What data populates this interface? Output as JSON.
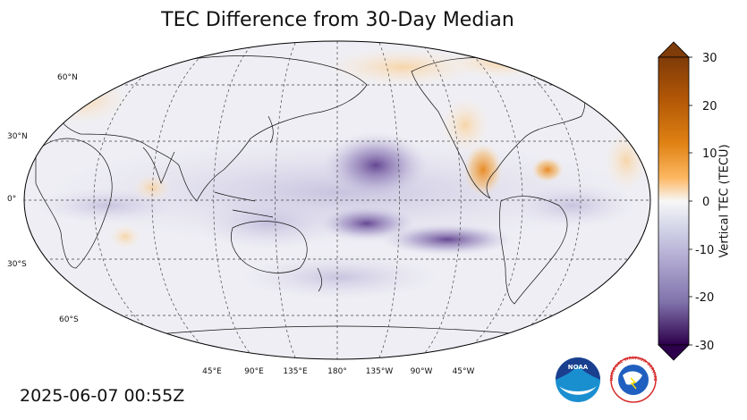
{
  "title": "TEC Difference from 30-Day Median",
  "timestamp": "2025-06-07 00:55Z",
  "colorbar": {
    "label": "Vertical TEC (TECU)",
    "ticks": [
      "30",
      "20",
      "10",
      "0",
      "-10",
      "-20",
      "-30"
    ]
  },
  "lat_labels": [
    "60°N",
    "30°N",
    "0°",
    "30°S",
    "60°S"
  ],
  "lon_labels": [
    "45°E",
    "90°E",
    "135°E",
    "180°",
    "135°W",
    "90°W",
    "45°W"
  ],
  "logos": {
    "noaa_text": "NOAA",
    "nws_text": "NATIONAL WEATHER SERVICE"
  },
  "colors": {
    "positive": "#e08a1e",
    "negative": "#6a4a9a",
    "neutral": "#f2f2f5"
  }
}
